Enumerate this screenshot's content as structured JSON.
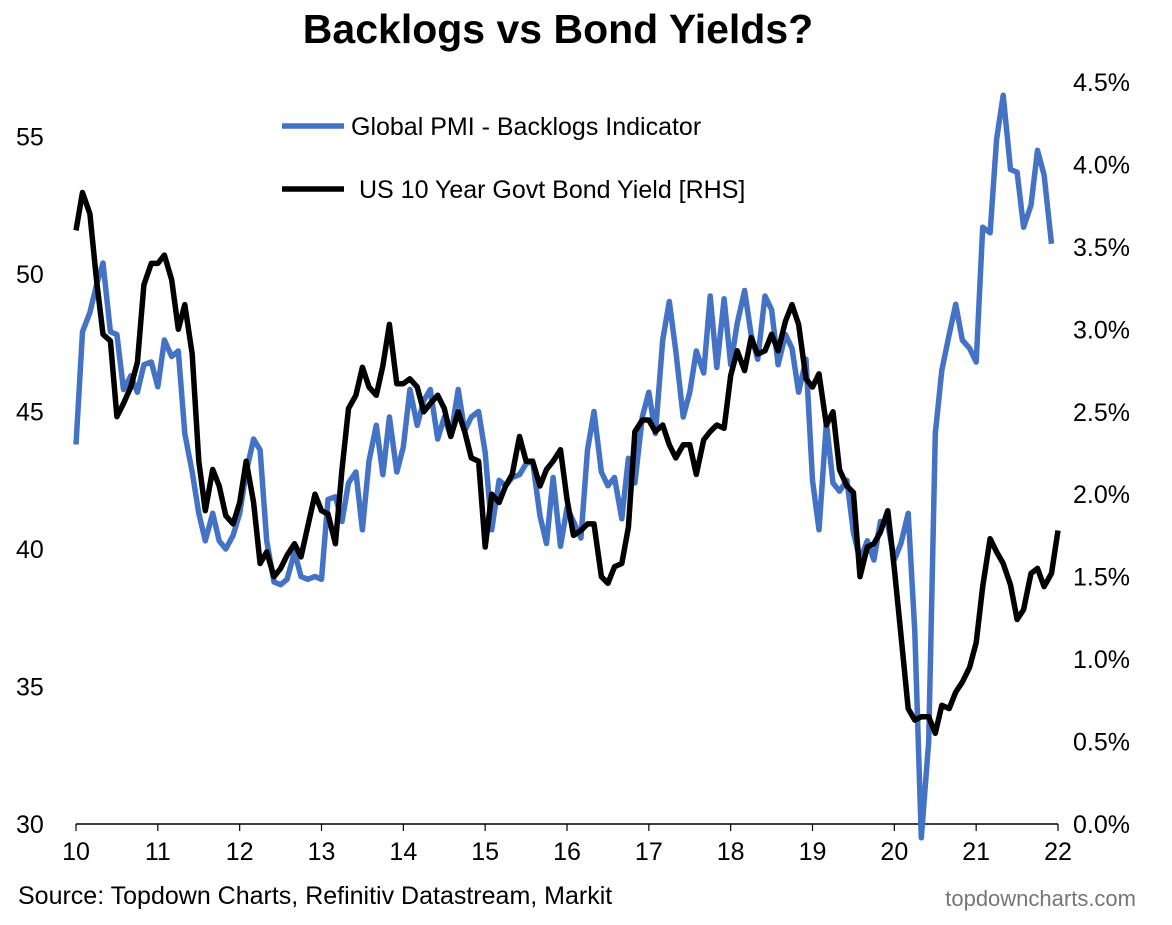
{
  "page": {
    "title": "Backlogs vs Bond Yields?",
    "source": "Source: Topdown Charts, Refinitiv Datastream, Markit",
    "brand": "topdowncharts.com"
  },
  "chart_data": {
    "type": "line",
    "x_ticks": [
      "10",
      "11",
      "12",
      "13",
      "14",
      "15",
      "16",
      "17",
      "18",
      "19",
      "20",
      "21",
      "22"
    ],
    "xlim": [
      2010,
      2022
    ],
    "y_left": {
      "range": [
        30,
        57
      ],
      "ticks": [
        30,
        35,
        40,
        45,
        50,
        55
      ],
      "tick_labels": [
        "30",
        "35",
        "40",
        "45",
        "50",
        "55"
      ]
    },
    "y_right": {
      "range": [
        0,
        4.5
      ],
      "ticks": [
        0,
        0.5,
        1,
        1.5,
        2,
        2.5,
        3,
        3.5,
        4,
        4.5
      ],
      "tick_labels": [
        "0.0%",
        "0.5%",
        "1.0%",
        "1.5%",
        "2.0%",
        "2.5%",
        "3.0%",
        "3.5%",
        "4.0%",
        "4.5%"
      ]
    },
    "grid": false,
    "legend_position": "top-center",
    "series": [
      {
        "name": "Global PMI - Backlogs Indicator",
        "axis": "left",
        "color": "#4472C4",
        "points": [
          [
            2010.0,
            43.8
          ],
          [
            2010.08,
            47.9
          ],
          [
            2010.17,
            48.6
          ],
          [
            2010.25,
            49.6
          ],
          [
            2010.33,
            50.4
          ],
          [
            2010.42,
            47.9
          ],
          [
            2010.5,
            47.8
          ],
          [
            2010.58,
            45.8
          ],
          [
            2010.67,
            46.3
          ],
          [
            2010.75,
            45.7
          ],
          [
            2010.83,
            46.7
          ],
          [
            2010.92,
            46.8
          ],
          [
            2011.0,
            45.9
          ],
          [
            2011.08,
            47.6
          ],
          [
            2011.17,
            47.0
          ],
          [
            2011.25,
            47.2
          ],
          [
            2011.33,
            44.2
          ],
          [
            2011.42,
            42.8
          ],
          [
            2011.5,
            41.3
          ],
          [
            2011.58,
            40.3
          ],
          [
            2011.67,
            41.3
          ],
          [
            2011.75,
            40.3
          ],
          [
            2011.83,
            40.0
          ],
          [
            2011.92,
            40.5
          ],
          [
            2012.0,
            41.3
          ],
          [
            2012.08,
            42.8
          ],
          [
            2012.17,
            44.0
          ],
          [
            2012.25,
            43.6
          ],
          [
            2012.33,
            40.3
          ],
          [
            2012.42,
            38.8
          ],
          [
            2012.5,
            38.7
          ],
          [
            2012.58,
            38.9
          ],
          [
            2012.67,
            39.9
          ],
          [
            2012.75,
            39.0
          ],
          [
            2012.83,
            38.9
          ],
          [
            2012.92,
            39.0
          ],
          [
            2013.0,
            38.9
          ],
          [
            2013.08,
            41.8
          ],
          [
            2013.17,
            41.9
          ],
          [
            2013.25,
            41.0
          ],
          [
            2013.33,
            42.4
          ],
          [
            2013.42,
            42.8
          ],
          [
            2013.5,
            40.7
          ],
          [
            2013.58,
            43.2
          ],
          [
            2013.67,
            44.5
          ],
          [
            2013.75,
            42.7
          ],
          [
            2013.83,
            44.8
          ],
          [
            2013.92,
            42.8
          ],
          [
            2014.0,
            43.7
          ],
          [
            2014.08,
            45.8
          ],
          [
            2014.17,
            44.5
          ],
          [
            2014.25,
            45.4
          ],
          [
            2014.33,
            45.8
          ],
          [
            2014.42,
            44.0
          ],
          [
            2014.5,
            44.8
          ],
          [
            2014.58,
            44.1
          ],
          [
            2014.67,
            45.8
          ],
          [
            2014.75,
            44.3
          ],
          [
            2014.83,
            44.8
          ],
          [
            2014.92,
            45.0
          ],
          [
            2015.0,
            43.5
          ],
          [
            2015.08,
            40.7
          ],
          [
            2015.17,
            42.5
          ],
          [
            2015.25,
            42.3
          ],
          [
            2015.33,
            42.6
          ],
          [
            2015.42,
            42.7
          ],
          [
            2015.5,
            43.1
          ],
          [
            2015.58,
            43.2
          ],
          [
            2015.67,
            41.2
          ],
          [
            2015.75,
            40.2
          ],
          [
            2015.83,
            42.6
          ],
          [
            2015.92,
            40.1
          ],
          [
            2016.0,
            41.5
          ],
          [
            2016.08,
            41.0
          ],
          [
            2016.17,
            40.4
          ],
          [
            2016.25,
            43.6
          ],
          [
            2016.33,
            45.0
          ],
          [
            2016.42,
            42.8
          ],
          [
            2016.5,
            42.3
          ],
          [
            2016.58,
            42.6
          ],
          [
            2016.67,
            41.1
          ],
          [
            2016.75,
            43.3
          ],
          [
            2016.83,
            42.4
          ],
          [
            2016.92,
            44.8
          ],
          [
            2017.0,
            45.7
          ],
          [
            2017.08,
            44.2
          ],
          [
            2017.17,
            47.6
          ],
          [
            2017.25,
            49.0
          ],
          [
            2017.33,
            47.2
          ],
          [
            2017.42,
            44.8
          ],
          [
            2017.5,
            45.7
          ],
          [
            2017.58,
            47.2
          ],
          [
            2017.67,
            46.4
          ],
          [
            2017.75,
            49.2
          ],
          [
            2017.83,
            46.6
          ],
          [
            2017.92,
            49.1
          ],
          [
            2018.0,
            46.7
          ],
          [
            2018.08,
            48.2
          ],
          [
            2018.17,
            49.4
          ],
          [
            2018.25,
            47.8
          ],
          [
            2018.33,
            46.9
          ],
          [
            2018.42,
            49.2
          ],
          [
            2018.5,
            48.7
          ],
          [
            2018.58,
            46.7
          ],
          [
            2018.67,
            47.8
          ],
          [
            2018.75,
            47.3
          ],
          [
            2018.83,
            45.7
          ],
          [
            2018.92,
            46.9
          ],
          [
            2019.0,
            42.5
          ],
          [
            2019.08,
            40.7
          ],
          [
            2019.17,
            44.6
          ],
          [
            2019.25,
            42.4
          ],
          [
            2019.33,
            42.1
          ],
          [
            2019.42,
            42.5
          ],
          [
            2019.5,
            40.6
          ],
          [
            2019.58,
            39.6
          ],
          [
            2019.67,
            40.3
          ],
          [
            2019.75,
            39.6
          ],
          [
            2019.83,
            41.0
          ],
          [
            2019.92,
            40.9
          ],
          [
            2020.0,
            39.6
          ],
          [
            2020.08,
            40.2
          ],
          [
            2020.17,
            41.3
          ],
          [
            2020.25,
            37.0
          ],
          [
            2020.33,
            29.5
          ],
          [
            2020.42,
            33.0
          ],
          [
            2020.5,
            44.2
          ],
          [
            2020.58,
            46.5
          ],
          [
            2020.67,
            47.8
          ],
          [
            2020.75,
            48.9
          ],
          [
            2020.83,
            47.6
          ],
          [
            2020.92,
            47.3
          ],
          [
            2021.0,
            46.8
          ],
          [
            2021.08,
            51.7
          ],
          [
            2021.17,
            51.5
          ],
          [
            2021.25,
            54.9
          ],
          [
            2021.33,
            56.5
          ],
          [
            2021.42,
            53.8
          ],
          [
            2021.5,
            53.7
          ],
          [
            2021.58,
            51.7
          ],
          [
            2021.67,
            52.5
          ],
          [
            2021.75,
            54.5
          ],
          [
            2021.83,
            53.6
          ],
          [
            2021.92,
            51.1
          ]
        ]
      },
      {
        "name": "US 10 Year Govt Bond Yield [RHS]",
        "axis": "right",
        "color": "#000000",
        "points": [
          [
            2010.0,
            3.6
          ],
          [
            2010.08,
            3.83
          ],
          [
            2010.17,
            3.7
          ],
          [
            2010.25,
            3.3
          ],
          [
            2010.33,
            2.97
          ],
          [
            2010.42,
            2.93
          ],
          [
            2010.5,
            2.47
          ],
          [
            2010.58,
            2.55
          ],
          [
            2010.67,
            2.65
          ],
          [
            2010.75,
            2.8
          ],
          [
            2010.83,
            3.27
          ],
          [
            2010.92,
            3.4
          ],
          [
            2011.0,
            3.4
          ],
          [
            2011.08,
            3.45
          ],
          [
            2011.17,
            3.3
          ],
          [
            2011.25,
            3.0
          ],
          [
            2011.33,
            3.15
          ],
          [
            2011.42,
            2.85
          ],
          [
            2011.5,
            2.2
          ],
          [
            2011.58,
            1.9
          ],
          [
            2011.67,
            2.15
          ],
          [
            2011.75,
            2.05
          ],
          [
            2011.83,
            1.87
          ],
          [
            2011.92,
            1.82
          ],
          [
            2012.0,
            1.95
          ],
          [
            2012.08,
            2.2
          ],
          [
            2012.17,
            1.95
          ],
          [
            2012.25,
            1.58
          ],
          [
            2012.33,
            1.65
          ],
          [
            2012.42,
            1.5
          ],
          [
            2012.5,
            1.55
          ],
          [
            2012.58,
            1.63
          ],
          [
            2012.67,
            1.7
          ],
          [
            2012.75,
            1.62
          ],
          [
            2012.83,
            1.8
          ],
          [
            2012.92,
            2.0
          ],
          [
            2013.0,
            1.9
          ],
          [
            2013.08,
            1.88
          ],
          [
            2013.17,
            1.7
          ],
          [
            2013.25,
            2.15
          ],
          [
            2013.33,
            2.52
          ],
          [
            2013.42,
            2.6
          ],
          [
            2013.5,
            2.77
          ],
          [
            2013.58,
            2.65
          ],
          [
            2013.67,
            2.6
          ],
          [
            2013.75,
            2.78
          ],
          [
            2013.83,
            3.03
          ],
          [
            2013.92,
            2.67
          ],
          [
            2014.0,
            2.67
          ],
          [
            2014.08,
            2.7
          ],
          [
            2014.17,
            2.65
          ],
          [
            2014.25,
            2.5
          ],
          [
            2014.33,
            2.55
          ],
          [
            2014.42,
            2.6
          ],
          [
            2014.5,
            2.52
          ],
          [
            2014.58,
            2.35
          ],
          [
            2014.67,
            2.5
          ],
          [
            2014.75,
            2.38
          ],
          [
            2014.83,
            2.22
          ],
          [
            2014.92,
            2.2
          ],
          [
            2015.0,
            1.68
          ],
          [
            2015.08,
            2.0
          ],
          [
            2015.17,
            1.95
          ],
          [
            2015.25,
            2.05
          ],
          [
            2015.33,
            2.12
          ],
          [
            2015.42,
            2.35
          ],
          [
            2015.5,
            2.2
          ],
          [
            2015.58,
            2.2
          ],
          [
            2015.67,
            2.05
          ],
          [
            2015.75,
            2.15
          ],
          [
            2015.83,
            2.2
          ],
          [
            2015.92,
            2.27
          ],
          [
            2016.0,
            1.97
          ],
          [
            2016.08,
            1.75
          ],
          [
            2016.17,
            1.78
          ],
          [
            2016.25,
            1.82
          ],
          [
            2016.33,
            1.82
          ],
          [
            2016.42,
            1.5
          ],
          [
            2016.5,
            1.46
          ],
          [
            2016.58,
            1.56
          ],
          [
            2016.67,
            1.58
          ],
          [
            2016.75,
            1.8
          ],
          [
            2016.83,
            2.38
          ],
          [
            2016.92,
            2.45
          ],
          [
            2017.0,
            2.45
          ],
          [
            2017.08,
            2.38
          ],
          [
            2017.17,
            2.42
          ],
          [
            2017.25,
            2.3
          ],
          [
            2017.33,
            2.22
          ],
          [
            2017.42,
            2.3
          ],
          [
            2017.5,
            2.3
          ],
          [
            2017.58,
            2.12
          ],
          [
            2017.67,
            2.33
          ],
          [
            2017.75,
            2.38
          ],
          [
            2017.83,
            2.42
          ],
          [
            2017.92,
            2.4
          ],
          [
            2018.0,
            2.72
          ],
          [
            2018.08,
            2.87
          ],
          [
            2018.17,
            2.75
          ],
          [
            2018.25,
            2.95
          ],
          [
            2018.33,
            2.85
          ],
          [
            2018.42,
            2.87
          ],
          [
            2018.5,
            2.97
          ],
          [
            2018.58,
            2.87
          ],
          [
            2018.67,
            3.05
          ],
          [
            2018.75,
            3.15
          ],
          [
            2018.83,
            3.03
          ],
          [
            2018.92,
            2.7
          ],
          [
            2019.0,
            2.65
          ],
          [
            2019.08,
            2.73
          ],
          [
            2019.17,
            2.42
          ],
          [
            2019.25,
            2.5
          ],
          [
            2019.33,
            2.15
          ],
          [
            2019.42,
            2.05
          ],
          [
            2019.5,
            2.01
          ],
          [
            2019.58,
            1.5
          ],
          [
            2019.67,
            1.68
          ],
          [
            2019.75,
            1.7
          ],
          [
            2019.83,
            1.77
          ],
          [
            2019.92,
            1.9
          ],
          [
            2020.0,
            1.55
          ],
          [
            2020.08,
            1.15
          ],
          [
            2020.17,
            0.7
          ],
          [
            2020.25,
            0.63
          ],
          [
            2020.33,
            0.65
          ],
          [
            2020.42,
            0.65
          ],
          [
            2020.5,
            0.55
          ],
          [
            2020.58,
            0.72
          ],
          [
            2020.67,
            0.7
          ],
          [
            2020.75,
            0.8
          ],
          [
            2020.83,
            0.86
          ],
          [
            2020.92,
            0.95
          ],
          [
            2021.0,
            1.1
          ],
          [
            2021.08,
            1.44
          ],
          [
            2021.17,
            1.73
          ],
          [
            2021.25,
            1.65
          ],
          [
            2021.33,
            1.58
          ],
          [
            2021.42,
            1.45
          ],
          [
            2021.5,
            1.24
          ],
          [
            2021.58,
            1.3
          ],
          [
            2021.67,
            1.52
          ],
          [
            2021.75,
            1.55
          ],
          [
            2021.83,
            1.44
          ],
          [
            2021.92,
            1.52
          ],
          [
            2022.0,
            1.78
          ]
        ]
      }
    ]
  }
}
